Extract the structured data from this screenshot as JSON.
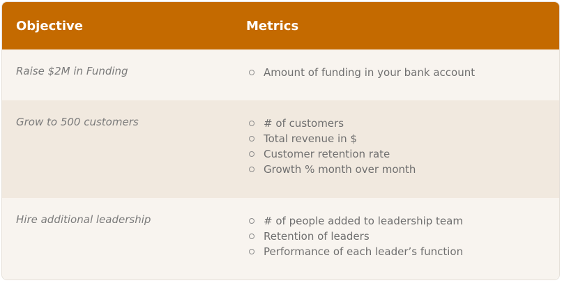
{
  "header": {
    "objective": "Objective",
    "metrics": "Metrics"
  },
  "rows": [
    {
      "objective": "Raise $2M in Funding",
      "metrics": [
        "Amount of funding in your bank account"
      ]
    },
    {
      "objective": "Grow to 500 customers",
      "metrics": [
        "# of customers",
        "Total revenue in $",
        "Customer retention rate",
        "Growth % month over month"
      ]
    },
    {
      "objective": "Hire additional leadership",
      "metrics": [
        "# of people added to leadership team",
        "Retention of leaders",
        "Performance of each leader’s function"
      ]
    }
  ],
  "colors": {
    "header_bg": "#c46a00",
    "row_bg_light": "#f8f4ef",
    "row_bg_alt": "#f1e9df",
    "text": "#6f6f6f"
  }
}
